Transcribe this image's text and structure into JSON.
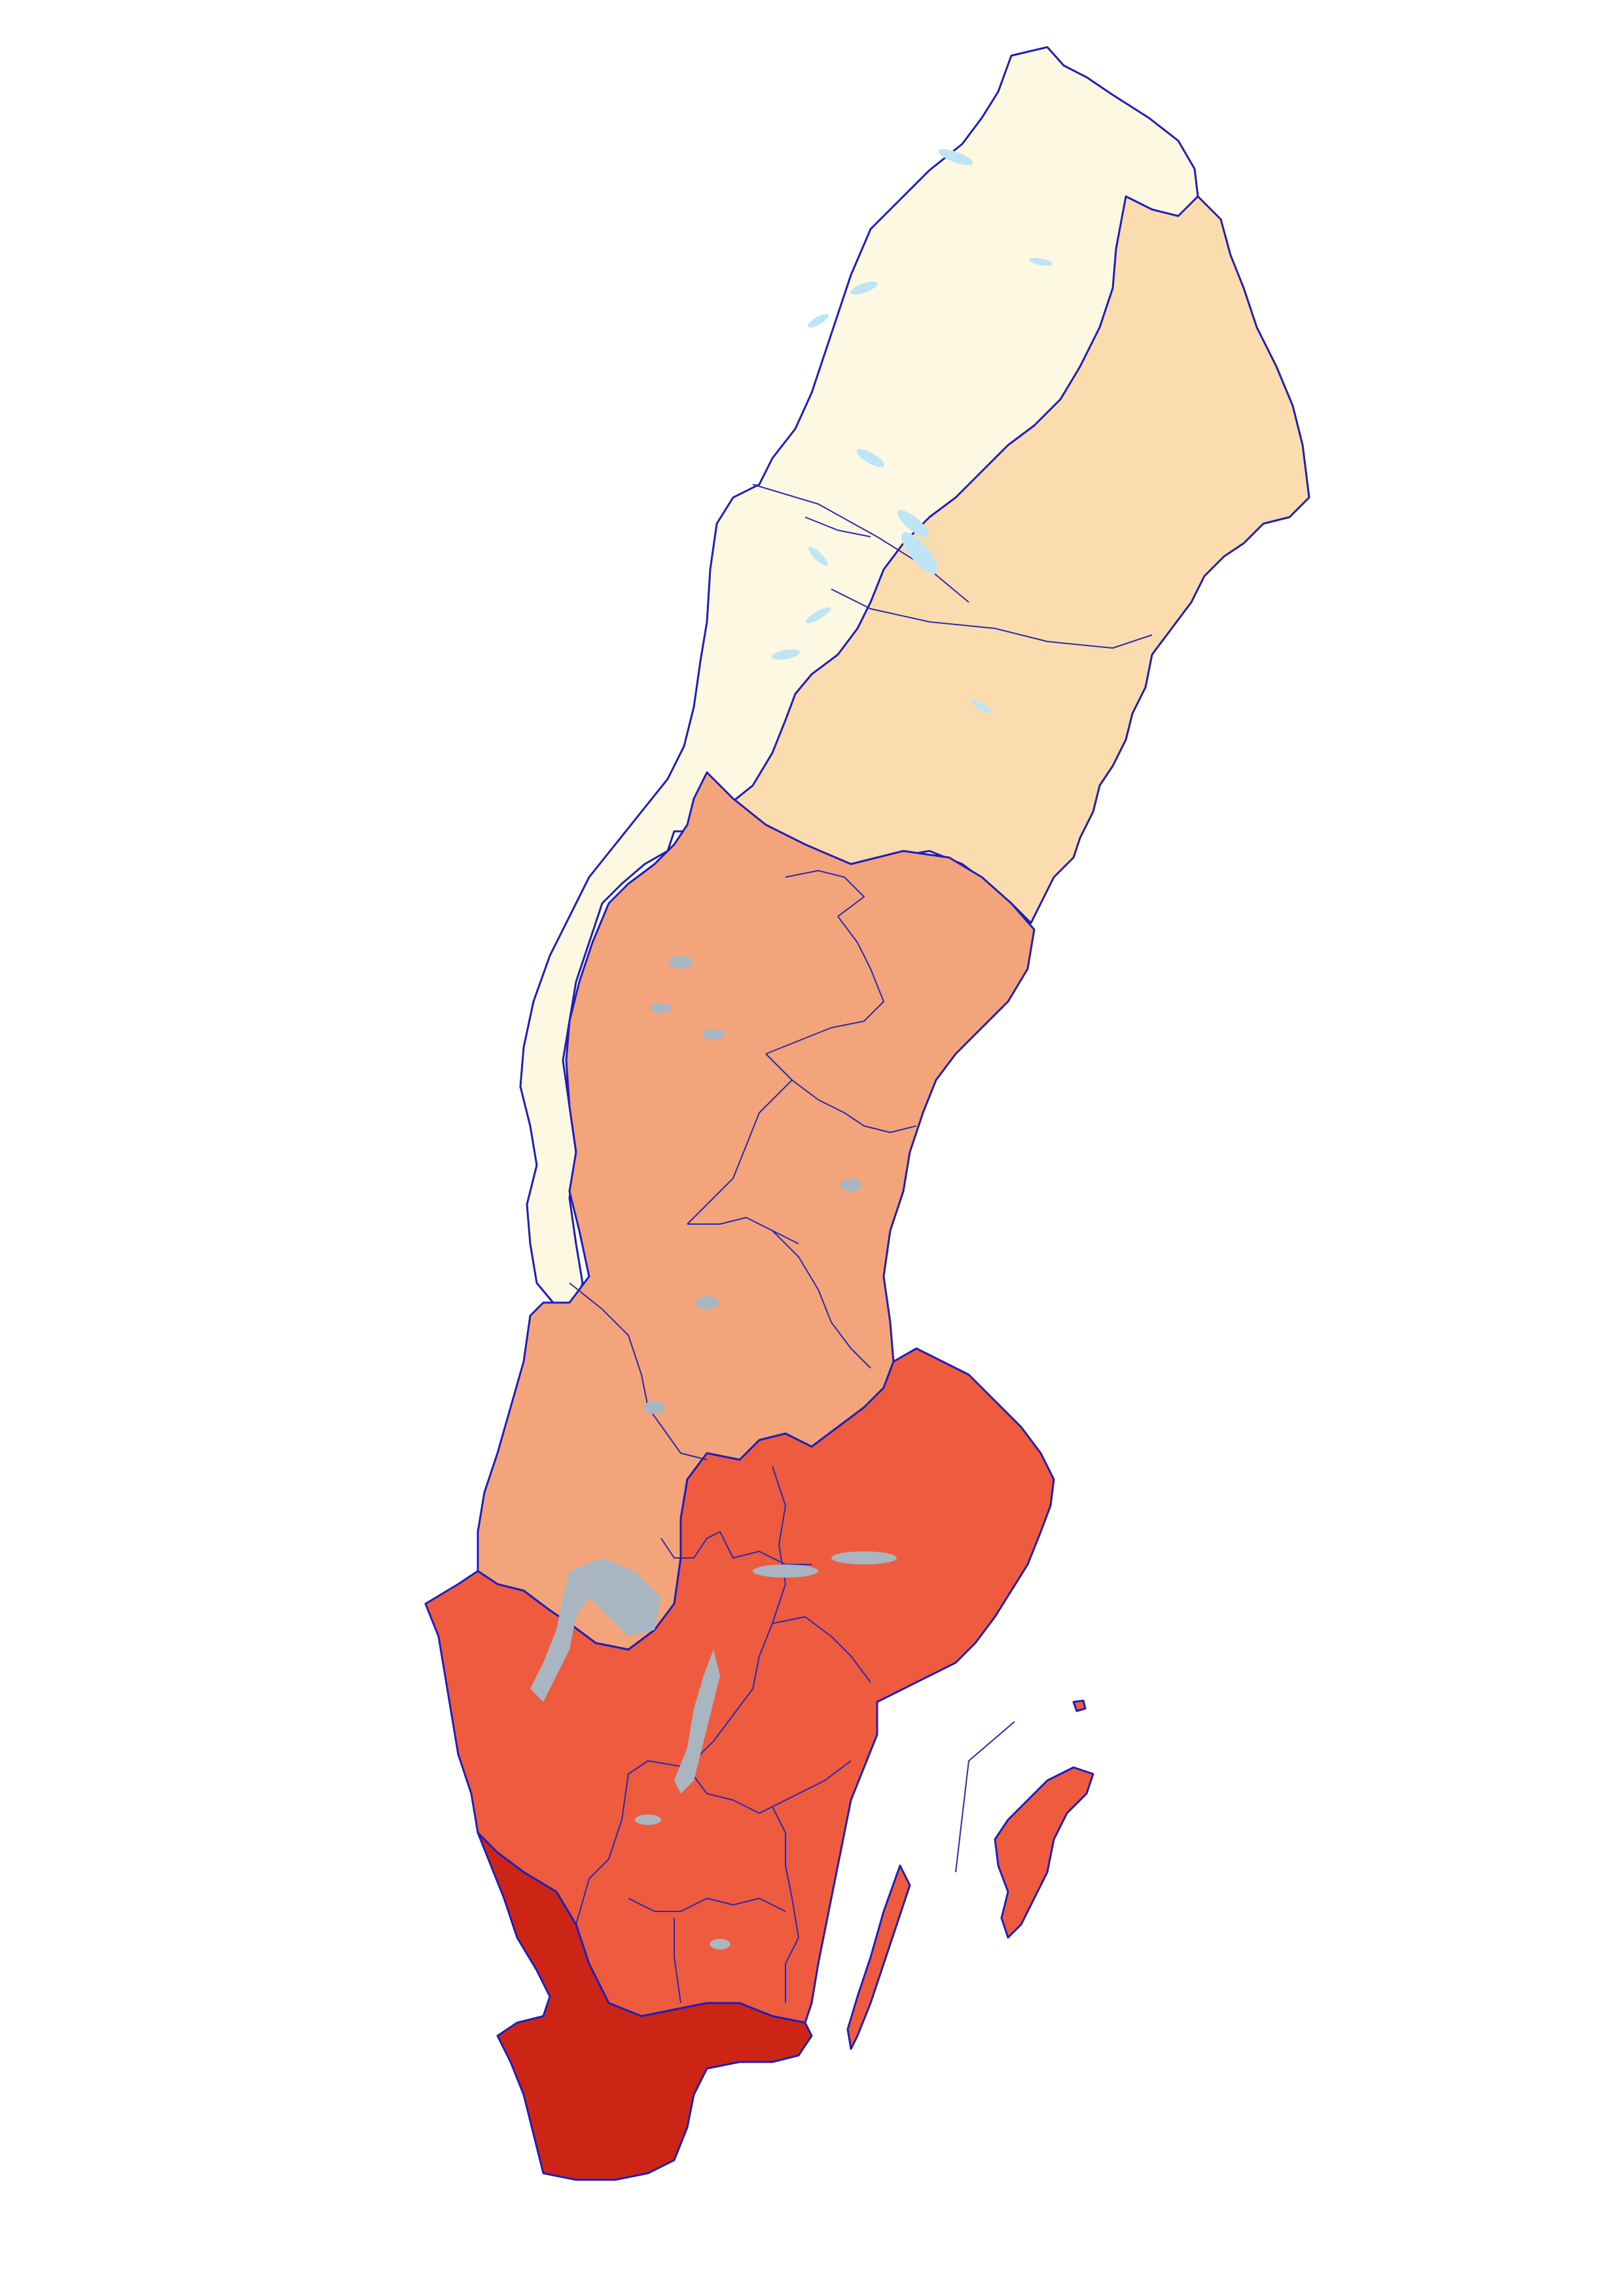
{
  "map": {
    "zones": [
      {
        "id": "mountains",
        "level": 1,
        "color": "#fdf8e1"
      },
      {
        "id": "norrbotten-lowland",
        "level": 2,
        "color": "#fbdcae"
      },
      {
        "id": "central",
        "level": 3,
        "color": "#f4a47b"
      },
      {
        "id": "svealand-gotaland",
        "level": 4,
        "color": "#ef5b3f"
      },
      {
        "id": "skane-halland",
        "level": 5,
        "color": "#cc2415"
      }
    ],
    "colors": {
      "border": "#1f1fb8",
      "lake_north": "#bfe5f4",
      "lake_south": "#a9b6c2",
      "background": "#ffffff"
    }
  }
}
